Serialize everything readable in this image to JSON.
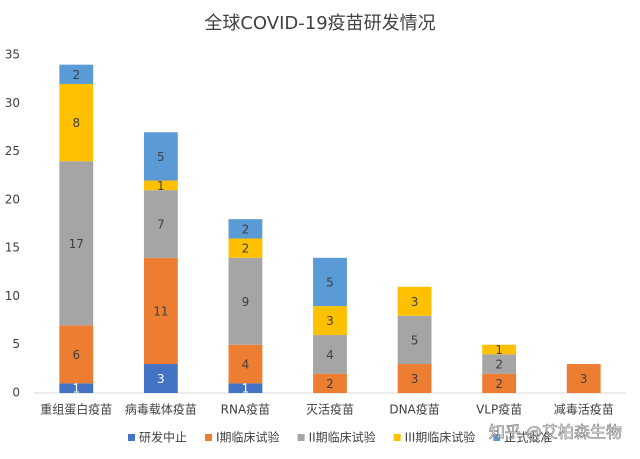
{
  "chart_data": {
    "type": "stacked_bar",
    "title": "全球COVID-19疫苗研发情况",
    "categories": [
      "重组蛋白疫苗",
      "病毒载体疫苗",
      "RNA疫苗",
      "灭活疫苗",
      "DNA疫苗",
      "VLP疫苗",
      "减毒活疫苗"
    ],
    "series": [
      {
        "name": "研发中止",
        "color": "#4472c4",
        "values": [
          1,
          3,
          1,
          null,
          null,
          null,
          null
        ]
      },
      {
        "name": "I期临床试验",
        "color": "#ed7d31",
        "values": [
          6,
          11,
          4,
          2,
          3,
          2,
          3
        ]
      },
      {
        "name": "II期临床试验",
        "color": "#a5a5a5",
        "values": [
          17,
          7,
          9,
          4,
          5,
          2,
          null
        ]
      },
      {
        "name": "III期临床试验",
        "color": "#ffc000",
        "values": [
          8,
          1,
          2,
          3,
          3,
          1,
          null
        ]
      },
      {
        "name": "正式批准",
        "color": "#5b9bd5",
        "values": [
          2,
          5,
          2,
          5,
          null,
          null,
          null
        ]
      }
    ],
    "ylim": [
      0,
      35
    ],
    "yticks": [
      0,
      5,
      10,
      15,
      20,
      25,
      30,
      35
    ],
    "grid": false,
    "legend": "bottom",
    "watermark": "知乎 @艾柏森生物"
  }
}
